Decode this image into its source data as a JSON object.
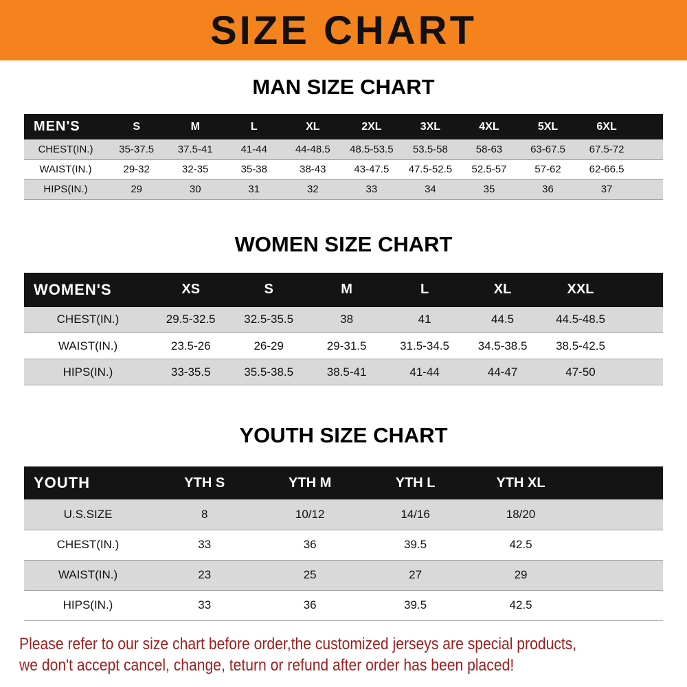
{
  "banner": {
    "title": "SIZE CHART"
  },
  "men": {
    "heading": "MAN SIZE CHART",
    "header": [
      "MEN'S",
      "S",
      "M",
      "L",
      "XL",
      "2XL",
      "3XL",
      "4XL",
      "5XL",
      "6XL"
    ],
    "rows": [
      [
        "CHEST(IN.)",
        "35-37.5",
        "37.5-41",
        "41-44",
        "44-48.5",
        "48.5-53.5",
        "53.5-58",
        "58-63",
        "63-67.5",
        "67.5-72"
      ],
      [
        "WAIST(IN.)",
        "29-32",
        "32-35",
        "35-38",
        "38-43",
        "43-47.5",
        "47.5-52.5",
        "52.5-57",
        "57-62",
        "62-66.5"
      ],
      [
        "HIPS(IN.)",
        "29",
        "30",
        "31",
        "32",
        "33",
        "34",
        "35",
        "36",
        "37"
      ]
    ]
  },
  "women": {
    "heading": "WOMEN SIZE CHART",
    "header": [
      "WOMEN'S",
      "XS",
      "S",
      "M",
      "L",
      "XL",
      "XXL"
    ],
    "rows": [
      [
        "CHEST(IN.)",
        "29.5-32.5",
        "32.5-35.5",
        "38",
        "41",
        "44.5",
        "44.5-48.5"
      ],
      [
        "WAIST(IN.)",
        "23.5-26",
        "26-29",
        "29-31.5",
        "31.5-34.5",
        "34.5-38.5",
        "38.5-42.5"
      ],
      [
        "HIPS(IN.)",
        "33-35.5",
        "35.5-38.5",
        "38.5-41",
        "41-44",
        "44-47",
        "47-50"
      ]
    ]
  },
  "youth": {
    "heading": "YOUTH SIZE CHART",
    "header": [
      "YOUTH",
      "YTH S",
      "YTH M",
      "YTH L",
      "YTH XL"
    ],
    "rows": [
      [
        "U.S.SIZE",
        "8",
        "10/12",
        "14/16",
        "18/20"
      ],
      [
        "CHEST(IN.)",
        "33",
        "36",
        "39.5",
        "42.5"
      ],
      [
        "WAIST(IN.)",
        "23",
        "25",
        "27",
        "29"
      ],
      [
        "HIPS(IN.)",
        "33",
        "36",
        "39.5",
        "42.5"
      ]
    ]
  },
  "footer": {
    "line1": "Please refer to our size chart before order,the customized jerseys are special products,",
    "line2": "we don't accept cancel, change, teturn or refund after order has been placed!"
  },
  "colors": {
    "banner_bg": "#F5831D",
    "table_header_bg": "#141414",
    "row_stripe": "#D9D9D9",
    "footer_text": "#9C1E1E"
  }
}
